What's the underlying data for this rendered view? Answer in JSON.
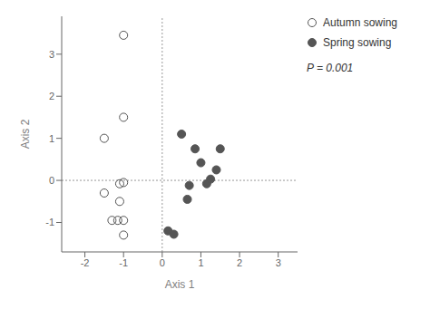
{
  "chart_data": {
    "type": "scatter",
    "xlabel": "Axis 1",
    "ylabel": "Axis 2",
    "series": [
      {
        "name": "Autumn sowing",
        "color": "#555555",
        "marker": "open_circle",
        "x": [
          -1.0,
          -1.0,
          -1.5,
          -1.0,
          -1.1,
          -1.5,
          -1.1,
          -1.0,
          -1.15,
          -1.3,
          -1.0
        ],
        "values": [
          3.45,
          1.5,
          1.0,
          -0.05,
          -0.08,
          -0.3,
          -0.5,
          -0.95,
          -0.95,
          -0.95,
          -1.3
        ]
      },
      {
        "name": "Spring sowing",
        "color": "#555555",
        "marker": "filled_circle",
        "x": [
          0.5,
          0.85,
          1.5,
          1.0,
          1.4,
          0.7,
          1.15,
          1.25,
          0.65,
          0.15,
          0.3
        ],
        "values": [
          1.1,
          0.75,
          0.75,
          0.42,
          0.25,
          -0.12,
          -0.08,
          0.03,
          -0.45,
          -1.2,
          -1.28
        ]
      }
    ],
    "xlim": [
      -2.6,
      3.5
    ],
    "ylim": [
      -1.7,
      3.9
    ],
    "xticks": [
      -2,
      -1,
      0,
      1,
      2,
      3
    ],
    "yticks": [
      -1,
      0,
      1,
      2,
      3
    ],
    "annotations": [
      "P = 0.001"
    ],
    "legend": "right",
    "grid": false
  }
}
